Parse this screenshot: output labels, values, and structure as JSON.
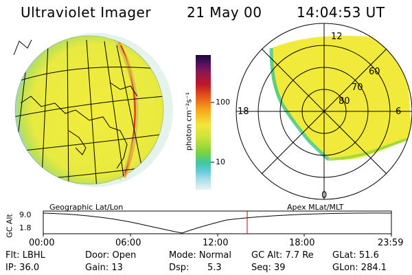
{
  "header": {
    "instrument": "Ultraviolet Imager",
    "date": "21 May 00",
    "time": "14:04:53 UT"
  },
  "colorbar": {
    "unit_label": "photon cm⁻²s⁻¹",
    "ticks": [
      "100",
      "10"
    ],
    "scale": "log"
  },
  "polar_plot": {
    "mlt_labels": [
      "12",
      "18",
      "6",
      "0"
    ],
    "mlat_labels": [
      "60",
      "70",
      "80"
    ]
  },
  "timeline": {
    "left_label": "Geographic Lat/Lon",
    "right_label": "Apex MLat/MLT",
    "y_axis_label": "GC Alt",
    "y_ticks": [
      "9.0",
      "1.8"
    ],
    "x_ticks": [
      "00:00",
      "06:00",
      "12:00",
      "18:00",
      "23:59"
    ],
    "marker_time": "14:04:53"
  },
  "footer": {
    "flt": "Flt: LBHL",
    "ip": "IP: 36.0",
    "door": "Door: Open",
    "gain": "Gain: 13",
    "mode": "Mode: Normal",
    "dsp_label": "Dsp:",
    "dsp_value": "5.3",
    "gcalt": "GC Alt: 7.7 Re",
    "seq": "Seq: 39",
    "glat": "GLat: 51.6",
    "glon": "GLon: 284.1"
  },
  "colors": {
    "background": "#ffffff",
    "marker": "#cc0000",
    "earth_fill": "#f2ea3a"
  }
}
